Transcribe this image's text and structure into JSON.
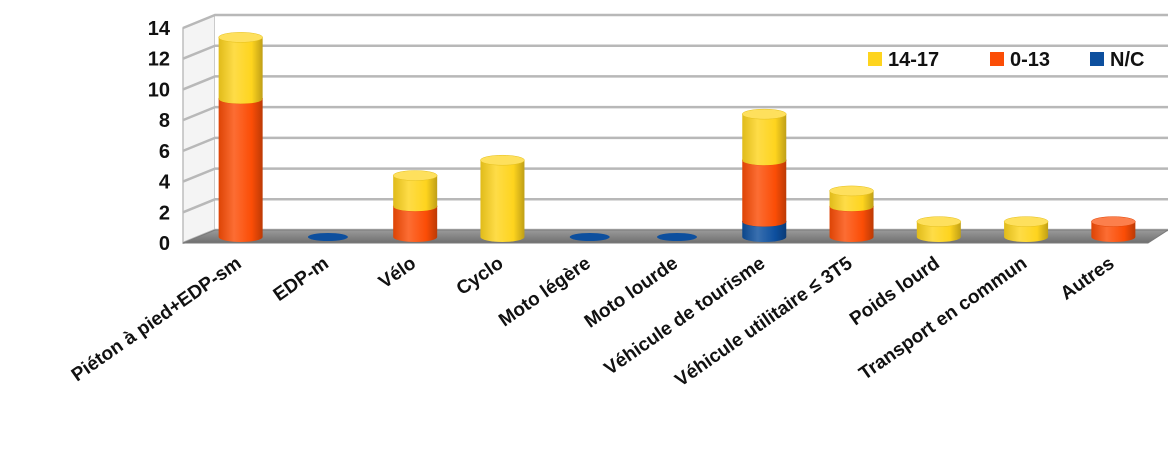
{
  "chart_data": {
    "type": "bar",
    "stacked": true,
    "three_d": true,
    "categories": [
      "Piéton à pied+EDP-sm",
      "EDP-m",
      "Vélo",
      "Cyclo",
      "Moto légère",
      "Moto lourde",
      "Véhicule de tourisme",
      "Véhicule utilitaire ≤ 3T5",
      "Poids lourd",
      "Transport en commun",
      "Autres"
    ],
    "series": [
      {
        "name": "N/C",
        "color": "#0d4f9e",
        "values": [
          0,
          0,
          0,
          0,
          0,
          0,
          1,
          0,
          0,
          0,
          0
        ]
      },
      {
        "name": "0-13",
        "color": "#fb4d06",
        "values": [
          9,
          0,
          2,
          0,
          0,
          0,
          4,
          2,
          0,
          0,
          1
        ]
      },
      {
        "name": "14-17",
        "color": "#fed41e",
        "values": [
          4,
          0,
          2,
          5,
          0,
          0,
          3,
          1,
          1,
          1,
          0
        ]
      }
    ],
    "legend_order": [
      "14-17",
      "0-13",
      "N/C"
    ],
    "ylim": [
      0,
      14
    ],
    "yticks": [
      "0",
      "2",
      "4",
      "6",
      "8",
      "10",
      "12",
      "14"
    ],
    "grid": true,
    "legend_position": "top-right",
    "title": "",
    "xlabel": "",
    "ylabel": ""
  }
}
